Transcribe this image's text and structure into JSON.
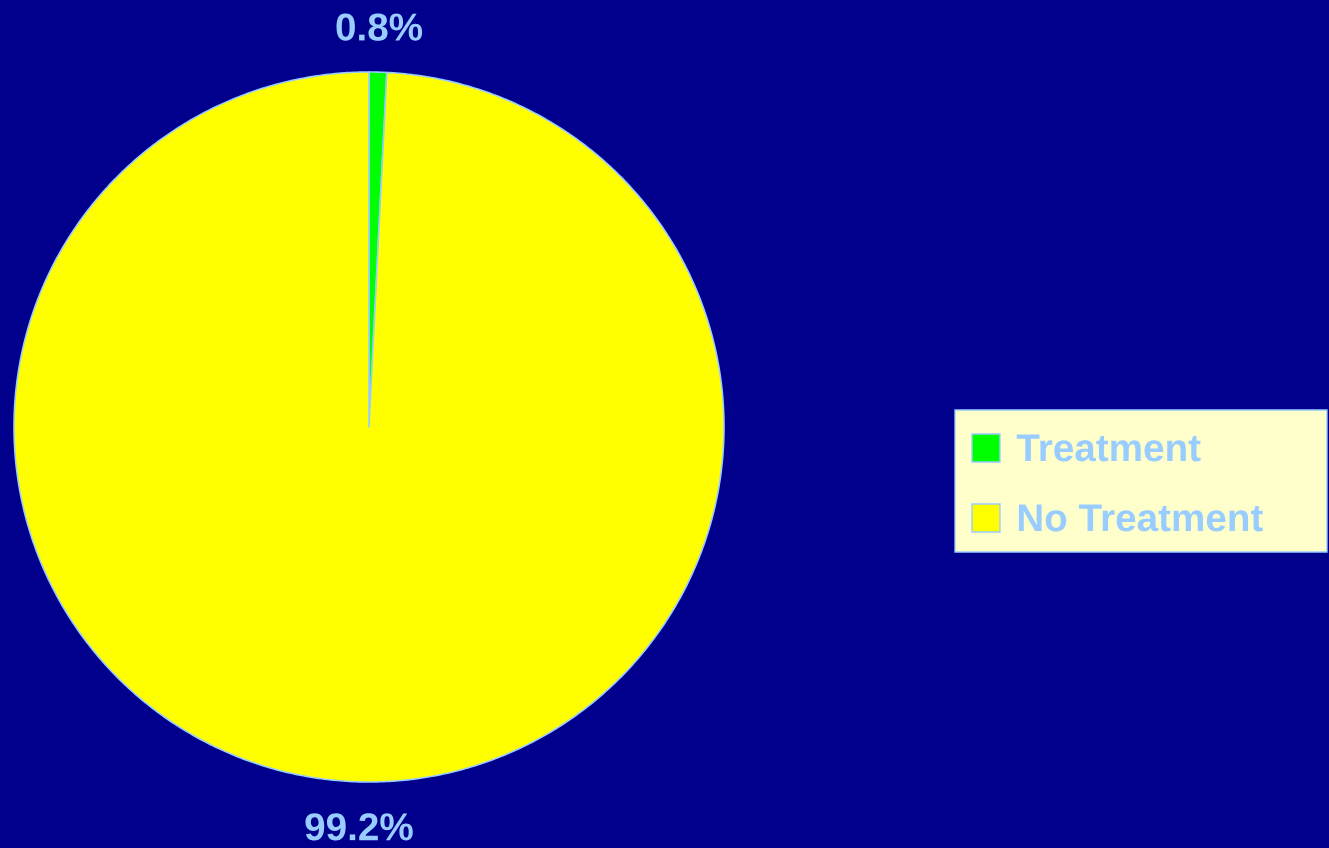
{
  "chart_data": {
    "type": "pie",
    "categories": [
      "Treatment",
      "No Treatment"
    ],
    "values": [
      0.8,
      99.2
    ],
    "colors": [
      "#00ff00",
      "#ffff00"
    ],
    "value_labels": [
      "0.8%",
      "99.2%"
    ],
    "legend": "right"
  }
}
